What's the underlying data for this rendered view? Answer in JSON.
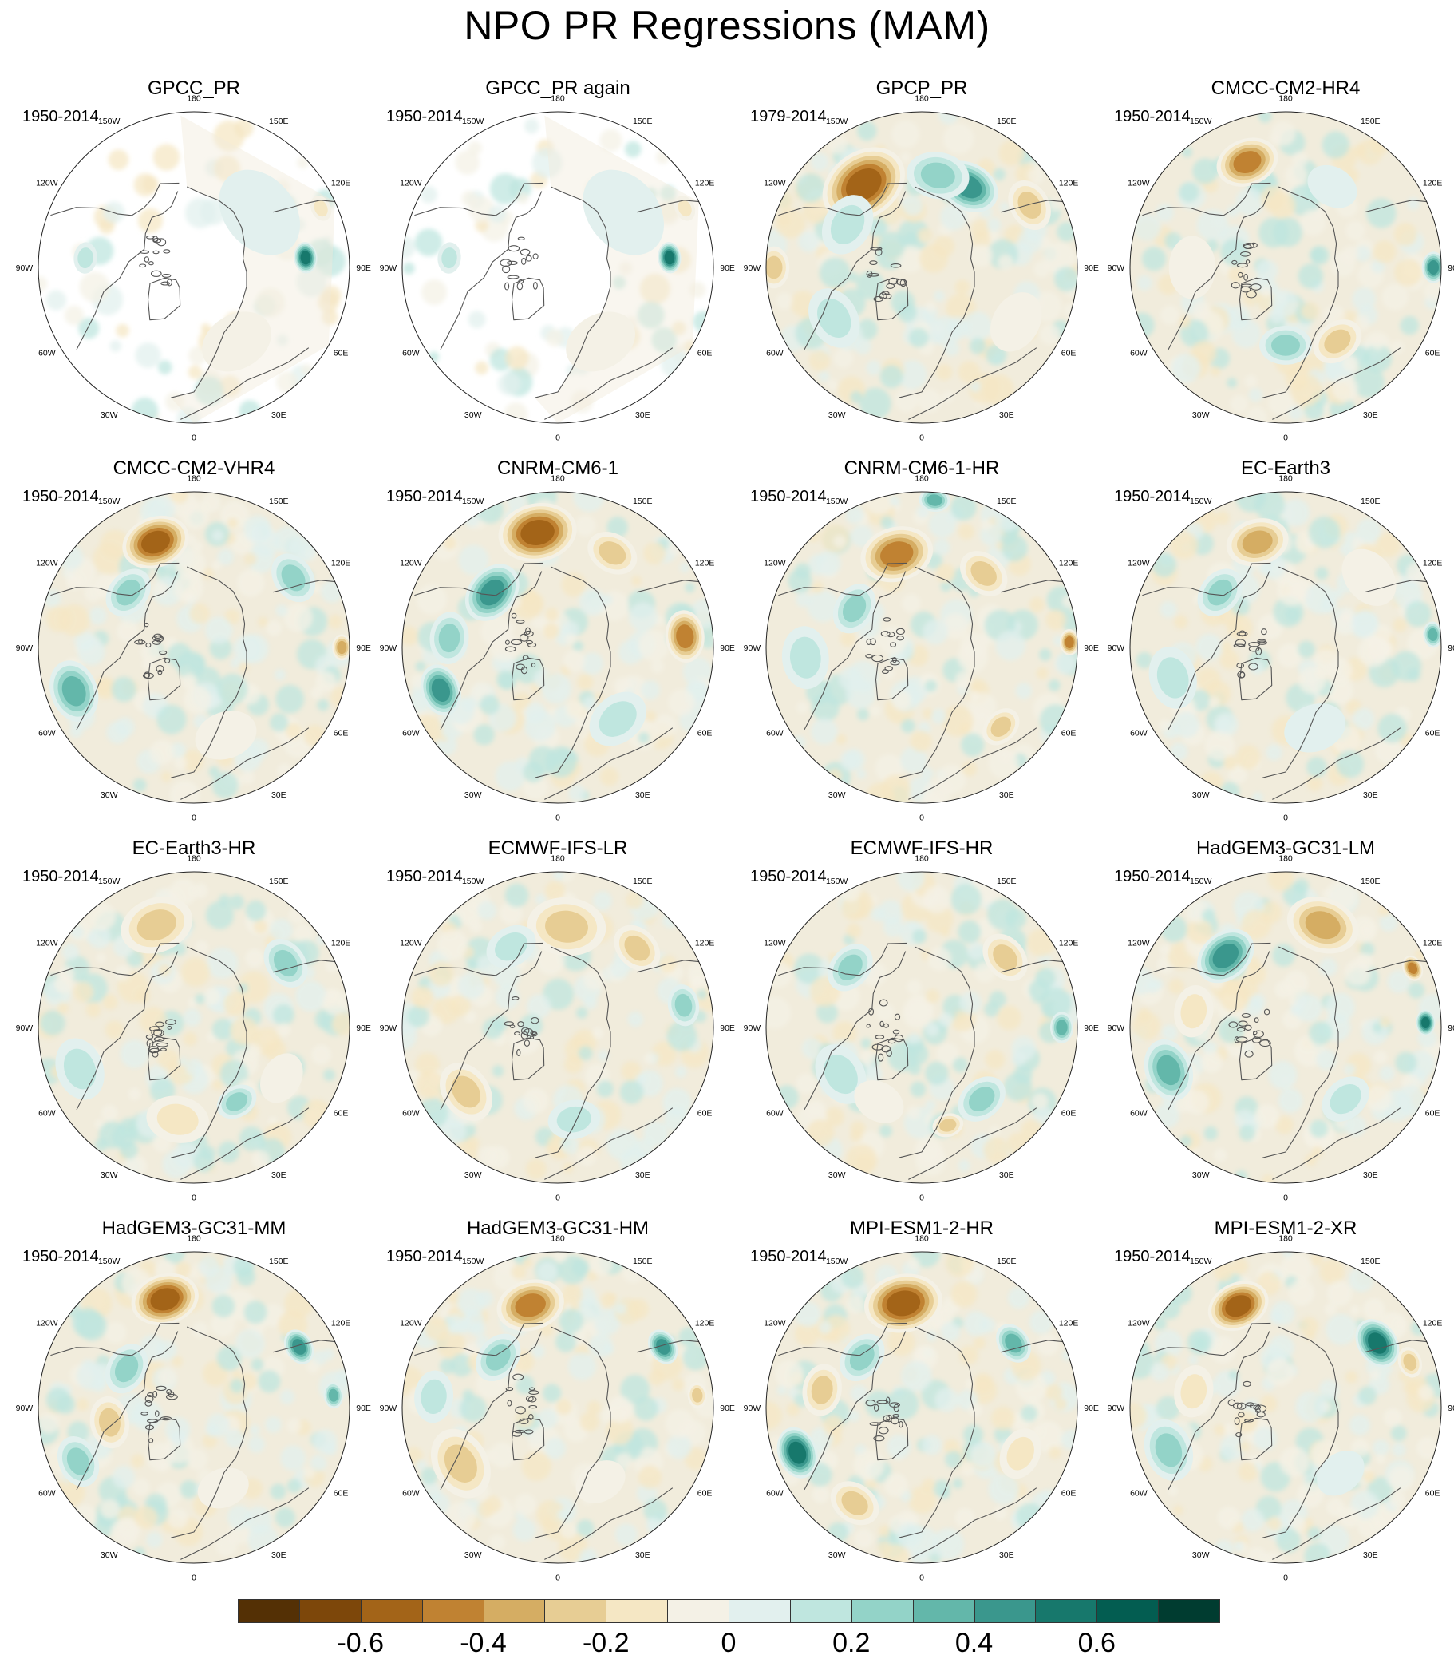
{
  "title": "NPO PR Regressions (MAM)",
  "lon_labels": [
    "180",
    "150E",
    "120E",
    "90E",
    "60E",
    "30E",
    "0",
    "30W",
    "60W",
    "90W",
    "120W",
    "150W"
  ],
  "panels": [
    {
      "title": "GPCC_PR",
      "period": "1950-2014",
      "fill": "partial",
      "anoms": [
        {
          "lon": 95,
          "r": 0.72,
          "v": 0.6,
          "s": 0.06
        },
        {
          "lon": 115,
          "r": 0.9,
          "v": -0.2,
          "s": 0.05
        },
        {
          "lon": -95,
          "r": 0.7,
          "v": 0.2,
          "s": 0.06
        },
        {
          "lon": 30,
          "r": 0.55,
          "v": -0.1,
          "s": 0.14
        },
        {
          "lon": 130,
          "r": 0.55,
          "v": 0.1,
          "s": 0.18
        }
      ]
    },
    {
      "title": "GPCC_PR again",
      "period": "1950-2014",
      "fill": "partial",
      "anoms": [
        {
          "lon": 95,
          "r": 0.72,
          "v": 0.6,
          "s": 0.06
        },
        {
          "lon": 115,
          "r": 0.9,
          "v": -0.2,
          "s": 0.05
        },
        {
          "lon": -95,
          "r": 0.7,
          "v": 0.2,
          "s": 0.06
        },
        {
          "lon": 30,
          "r": 0.55,
          "v": -0.1,
          "s": 0.14
        },
        {
          "lon": 130,
          "r": 0.55,
          "v": 0.1,
          "s": 0.18
        }
      ]
    },
    {
      "title": "GPCP_PR",
      "period": "1979-2014",
      "fill": "full",
      "anoms": [
        {
          "lon": -145,
          "r": 0.65,
          "v": -0.6,
          "s": 0.17
        },
        {
          "lon": 150,
          "r": 0.6,
          "v": 0.45,
          "s": 0.12
        },
        {
          "lon": 170,
          "r": 0.6,
          "v": 0.3,
          "s": 0.12
        },
        {
          "lon": 120,
          "r": 0.8,
          "v": -0.3,
          "s": 0.1
        },
        {
          "lon": -60,
          "r": 0.65,
          "v": 0.2,
          "s": 0.12
        },
        {
          "lon": -90,
          "r": 0.95,
          "v": -0.3,
          "s": 0.08
        },
        {
          "lon": -120,
          "r": 0.55,
          "v": 0.2,
          "s": 0.12
        },
        {
          "lon": 60,
          "r": 0.7,
          "v": -0.15,
          "s": 0.12
        }
      ]
    },
    {
      "title": "CMCC-CM2-HR4",
      "period": "1950-2014",
      "fill": "full",
      "anoms": [
        {
          "lon": -160,
          "r": 0.72,
          "v": -0.5,
          "s": 0.12
        },
        {
          "lon": 90,
          "r": 0.95,
          "v": 0.5,
          "s": 0.06
        },
        {
          "lon": 35,
          "r": 0.58,
          "v": -0.3,
          "s": 0.1
        },
        {
          "lon": 0,
          "r": 0.5,
          "v": 0.25,
          "s": 0.1
        },
        {
          "lon": -90,
          "r": 0.6,
          "v": -0.15,
          "s": 0.12
        },
        {
          "lon": 150,
          "r": 0.6,
          "v": 0.15,
          "s": 0.1
        }
      ]
    },
    {
      "title": "CMCC-CM2-VHR4",
      "period": "1950-2014",
      "fill": "full",
      "anoms": [
        {
          "lon": -160,
          "r": 0.72,
          "v": -0.55,
          "s": 0.13
        },
        {
          "lon": 125,
          "r": 0.78,
          "v": 0.35,
          "s": 0.1
        },
        {
          "lon": -70,
          "r": 0.82,
          "v": 0.4,
          "s": 0.12
        },
        {
          "lon": 90,
          "r": 0.95,
          "v": -0.4,
          "s": 0.05
        },
        {
          "lon": -130,
          "r": 0.55,
          "v": 0.3,
          "s": 0.1
        },
        {
          "lon": 20,
          "r": 0.6,
          "v": -0.15,
          "s": 0.12
        }
      ]
    },
    {
      "title": "CNRM-CM6-1",
      "period": "1950-2014",
      "fill": "full",
      "anoms": [
        {
          "lon": -170,
          "r": 0.75,
          "v": -0.6,
          "s": 0.15
        },
        {
          "lon": 95,
          "r": 0.82,
          "v": -0.5,
          "s": 0.1
        },
        {
          "lon": -130,
          "r": 0.55,
          "v": 0.5,
          "s": 0.12
        },
        {
          "lon": -70,
          "r": 0.8,
          "v": 0.45,
          "s": 0.1
        },
        {
          "lon": -95,
          "r": 0.7,
          "v": 0.3,
          "s": 0.1
        },
        {
          "lon": 150,
          "r": 0.7,
          "v": -0.3,
          "s": 0.1
        },
        {
          "lon": 40,
          "r": 0.6,
          "v": 0.2,
          "s": 0.12
        }
      ]
    },
    {
      "title": "CNRM-CM6-1-HR",
      "period": "1950-2014",
      "fill": "full",
      "anoms": [
        {
          "lon": -165,
          "r": 0.62,
          "v": -0.5,
          "s": 0.14
        },
        {
          "lon": 175,
          "r": 0.95,
          "v": 0.4,
          "s": 0.06
        },
        {
          "lon": 140,
          "r": 0.62,
          "v": -0.3,
          "s": 0.1
        },
        {
          "lon": 92,
          "r": 0.95,
          "v": -0.5,
          "s": 0.05
        },
        {
          "lon": 45,
          "r": 0.72,
          "v": -0.3,
          "s": 0.08
        },
        {
          "lon": -120,
          "r": 0.5,
          "v": 0.35,
          "s": 0.1
        },
        {
          "lon": -85,
          "r": 0.75,
          "v": 0.2,
          "s": 0.12
        }
      ]
    },
    {
      "title": "EC-Earth3",
      "period": "1950-2014",
      "fill": "full",
      "anoms": [
        {
          "lon": -165,
          "r": 0.7,
          "v": -0.4,
          "s": 0.12
        },
        {
          "lon": -130,
          "r": 0.55,
          "v": 0.35,
          "s": 0.1
        },
        {
          "lon": 95,
          "r": 0.95,
          "v": 0.4,
          "s": 0.05
        },
        {
          "lon": -75,
          "r": 0.75,
          "v": 0.2,
          "s": 0.12
        },
        {
          "lon": 130,
          "r": 0.7,
          "v": -0.15,
          "s": 0.12
        },
        {
          "lon": 20,
          "r": 0.55,
          "v": 0.15,
          "s": 0.12
        }
      ]
    },
    {
      "title": "EC-Earth3-HR",
      "period": "1950-2014",
      "fill": "full",
      "anoms": [
        {
          "lon": -160,
          "r": 0.7,
          "v": -0.35,
          "s": 0.14
        },
        {
          "lon": 125,
          "r": 0.72,
          "v": 0.3,
          "s": 0.1
        },
        {
          "lon": -70,
          "r": 0.78,
          "v": 0.2,
          "s": 0.12
        },
        {
          "lon": 30,
          "r": 0.55,
          "v": 0.3,
          "s": 0.08
        },
        {
          "lon": -10,
          "r": 0.6,
          "v": -0.2,
          "s": 0.12
        },
        {
          "lon": 60,
          "r": 0.65,
          "v": -0.15,
          "s": 0.1
        }
      ]
    },
    {
      "title": "ECMWF-IFS-LR",
      "period": "1950-2014",
      "fill": "full",
      "anoms": [
        {
          "lon": 175,
          "r": 0.65,
          "v": -0.35,
          "s": 0.15
        },
        {
          "lon": 135,
          "r": 0.72,
          "v": -0.3,
          "s": 0.1
        },
        {
          "lon": 100,
          "r": 0.82,
          "v": 0.35,
          "s": 0.08
        },
        {
          "lon": -55,
          "r": 0.72,
          "v": -0.3,
          "s": 0.12
        },
        {
          "lon": -150,
          "r": 0.6,
          "v": 0.2,
          "s": 0.1
        },
        {
          "lon": 10,
          "r": 0.6,
          "v": 0.2,
          "s": 0.1
        }
      ]
    },
    {
      "title": "ECMWF-IFS-HR",
      "period": "1950-2014",
      "fill": "full",
      "anoms": [
        {
          "lon": -130,
          "r": 0.6,
          "v": 0.3,
          "s": 0.1
        },
        {
          "lon": 130,
          "r": 0.7,
          "v": -0.3,
          "s": 0.1
        },
        {
          "lon": 90,
          "r": 0.9,
          "v": 0.4,
          "s": 0.06
        },
        {
          "lon": 15,
          "r": 0.65,
          "v": -0.3,
          "s": 0.06
        },
        {
          "lon": 40,
          "r": 0.6,
          "v": 0.25,
          "s": 0.1
        },
        {
          "lon": -60,
          "r": 0.6,
          "v": 0.2,
          "s": 0.12
        },
        {
          "lon": -30,
          "r": 0.55,
          "v": -0.15,
          "s": 0.1
        }
      ]
    },
    {
      "title": "HadGEM3-GC31-LM",
      "period": "1950-2014",
      "fill": "full",
      "anoms": [
        {
          "lon": -140,
          "r": 0.6,
          "v": 0.5,
          "s": 0.12
        },
        {
          "lon": 160,
          "r": 0.7,
          "v": -0.4,
          "s": 0.14
        },
        {
          "lon": 92,
          "r": 0.9,
          "v": 0.55,
          "s": 0.05
        },
        {
          "lon": 115,
          "r": 0.9,
          "v": -0.45,
          "s": 0.05
        },
        {
          "lon": -70,
          "r": 0.8,
          "v": 0.4,
          "s": 0.12
        },
        {
          "lon": -100,
          "r": 0.6,
          "v": -0.2,
          "s": 0.1
        },
        {
          "lon": 40,
          "r": 0.6,
          "v": 0.2,
          "s": 0.1
        }
      ]
    },
    {
      "title": "HadGEM3-GC31-MM",
      "period": "1950-2014",
      "fill": "full",
      "anoms": [
        {
          "lon": -165,
          "r": 0.72,
          "v": -0.6,
          "s": 0.13
        },
        {
          "lon": 120,
          "r": 0.78,
          "v": 0.5,
          "s": 0.07
        },
        {
          "lon": 95,
          "r": 0.9,
          "v": 0.4,
          "s": 0.05
        },
        {
          "lon": -65,
          "r": 0.82,
          "v": 0.35,
          "s": 0.1
        },
        {
          "lon": -80,
          "r": 0.55,
          "v": -0.25,
          "s": 0.1
        },
        {
          "lon": -120,
          "r": 0.5,
          "v": 0.25,
          "s": 0.1
        },
        {
          "lon": 20,
          "r": 0.55,
          "v": -0.15,
          "s": 0.1
        }
      ]
    },
    {
      "title": "HadGEM3-GC31-HM",
      "period": "1950-2014",
      "fill": "full",
      "anoms": [
        {
          "lon": -165,
          "r": 0.68,
          "v": -0.5,
          "s": 0.13
        },
        {
          "lon": 120,
          "r": 0.78,
          "v": 0.45,
          "s": 0.07
        },
        {
          "lon": 95,
          "r": 0.9,
          "v": -0.35,
          "s": 0.05
        },
        {
          "lon": -60,
          "r": 0.72,
          "v": -0.3,
          "s": 0.14
        },
        {
          "lon": -130,
          "r": 0.5,
          "v": 0.35,
          "s": 0.1
        },
        {
          "lon": -95,
          "r": 0.8,
          "v": 0.2,
          "s": 0.1
        },
        {
          "lon": 30,
          "r": 0.55,
          "v": -0.1,
          "s": 0.1
        }
      ]
    },
    {
      "title": "MPI-ESM1-2-HR",
      "period": "1950-2014",
      "fill": "full",
      "anoms": [
        {
          "lon": -170,
          "r": 0.68,
          "v": -0.55,
          "s": 0.15
        },
        {
          "lon": -70,
          "r": 0.85,
          "v": 0.55,
          "s": 0.1
        },
        {
          "lon": 125,
          "r": 0.72,
          "v": 0.4,
          "s": 0.08
        },
        {
          "lon": -35,
          "r": 0.75,
          "v": -0.35,
          "s": 0.1
        },
        {
          "lon": -100,
          "r": 0.65,
          "v": -0.3,
          "s": 0.1
        },
        {
          "lon": 65,
          "r": 0.7,
          "v": -0.2,
          "s": 0.1
        },
        {
          "lon": -130,
          "r": 0.5,
          "v": 0.3,
          "s": 0.1
        }
      ]
    },
    {
      "title": "MPI-ESM1-2-XR",
      "period": "1950-2014",
      "fill": "full",
      "anoms": [
        {
          "lon": -155,
          "r": 0.72,
          "v": -0.6,
          "s": 0.12
        },
        {
          "lon": 125,
          "r": 0.72,
          "v": 0.55,
          "s": 0.1
        },
        {
          "lon": 110,
          "r": 0.85,
          "v": -0.3,
          "s": 0.06
        },
        {
          "lon": -70,
          "r": 0.8,
          "v": 0.3,
          "s": 0.12
        },
        {
          "lon": -100,
          "r": 0.6,
          "v": -0.2,
          "s": 0.1
        },
        {
          "lon": 40,
          "r": 0.55,
          "v": 0.15,
          "s": 0.1
        }
      ]
    }
  ],
  "colorbar": {
    "colors": [
      "#543005",
      "#7d470a",
      "#a36418",
      "#c08232",
      "#d5ad63",
      "#e7cd94",
      "#f5e7c4",
      "#f4f1e6",
      "#e2f0ee",
      "#bfe6df",
      "#93d3c8",
      "#63b7aa",
      "#3a978d",
      "#17786c",
      "#035d51",
      "#003c30"
    ],
    "labels": [
      "-0.6",
      "-0.4",
      "-0.2",
      "0",
      "0.2",
      "0.4",
      "0.6"
    ],
    "label_after_box": [
      1,
      3,
      5,
      7,
      9,
      11,
      13
    ]
  }
}
